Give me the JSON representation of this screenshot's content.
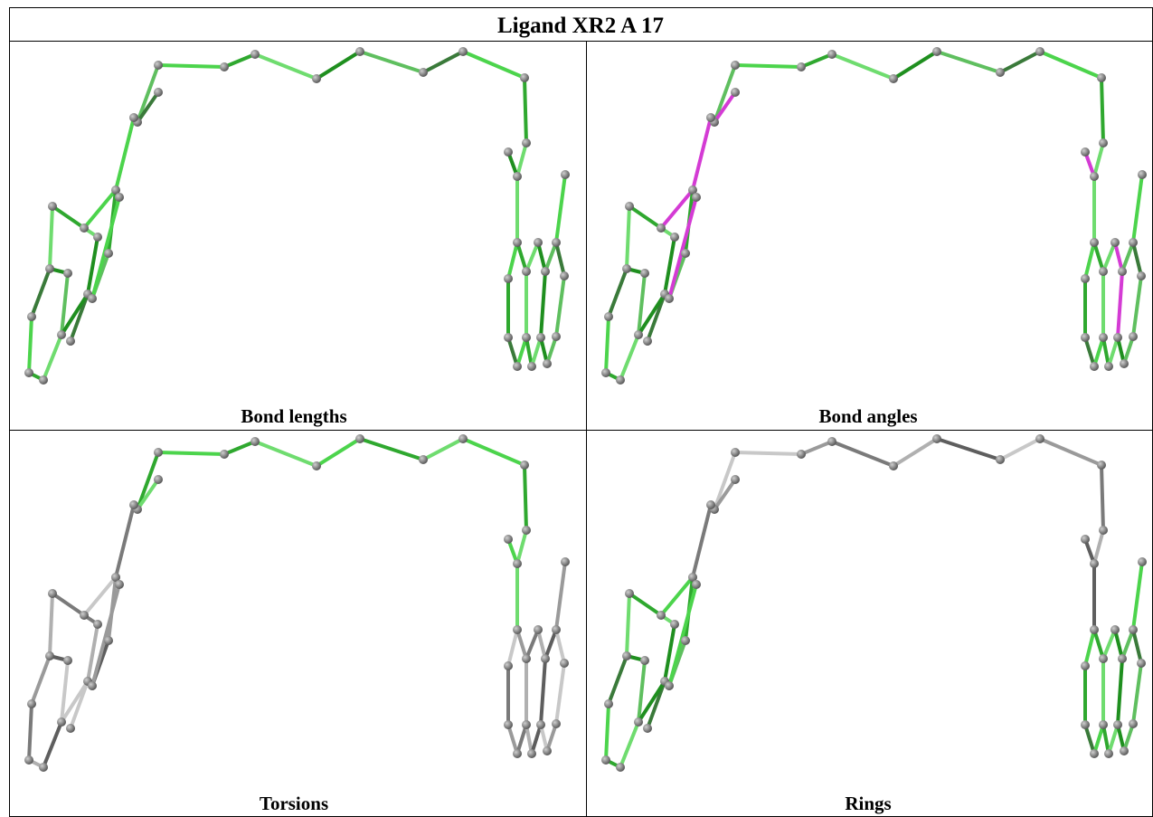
{
  "title": "Ligand XR2 A 17",
  "panels": [
    {
      "label": "Bond lengths"
    },
    {
      "label": "Bond angles"
    },
    {
      "label": "Torsions"
    },
    {
      "label": "Rings"
    }
  ]
}
